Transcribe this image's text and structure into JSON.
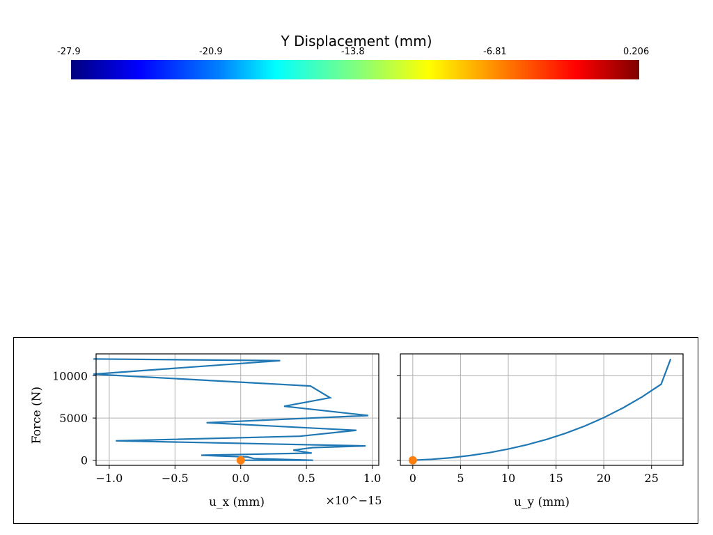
{
  "colorbar": {
    "title": "Y Displacement (mm)",
    "ticks": [
      "-27.9",
      "-20.9",
      "-13.8",
      "-6.81",
      "0.206"
    ],
    "colors": [
      "#00007f",
      "#0000ff",
      "#007fff",
      "#00ffff",
      "#7fff7f",
      "#ffff00",
      "#ff7f00",
      "#ff0000",
      "#7f0000"
    ]
  },
  "chart_data": [
    {
      "type": "line",
      "ylabel": "Force (N)",
      "xlabel": "u_x (mm)",
      "x_multiplier": "×10^−15",
      "x_tick_labels": [
        "−1.0",
        "−0.5",
        "0.0",
        "0.5",
        "1.0"
      ],
      "y_tick_labels": [
        "0",
        "5000",
        "10000"
      ],
      "xlim": [
        -1.1,
        1.05
      ],
      "ylim": [
        -600,
        12600
      ],
      "grid": true,
      "series": [
        {
          "color": "#1f77b4",
          "x": [
            0.0,
            0.55,
            0.1,
            0.05,
            -0.15,
            -0.3,
            0.54,
            0.4,
            0.55,
            0.95,
            -0.95,
            0.45,
            0.88,
            -0.26,
            0.97,
            0.33,
            0.68,
            0.53,
            -1.12,
            0.3,
            -1.12
          ],
          "y": [
            0,
            0,
            200,
            400,
            500,
            600,
            850,
            1200,
            1500,
            1700,
            2300,
            2850,
            3550,
            4450,
            5300,
            6400,
            7400,
            8800,
            10200,
            11800,
            12000
          ]
        }
      ],
      "marker": {
        "x": 0,
        "y": 0,
        "color": "#ff7f0e"
      }
    },
    {
      "type": "line",
      "xlabel": "u_y (mm)",
      "x_tick_labels": [
        "0",
        "5",
        "10",
        "15",
        "20",
        "25"
      ],
      "xlim": [
        -1.3,
        28.3
      ],
      "ylim": [
        -600,
        12600
      ],
      "grid": true,
      "series": [
        {
          "color": "#1f77b4",
          "x": [
            0,
            2,
            4,
            6,
            8,
            10,
            12,
            14,
            16,
            18,
            20,
            22,
            24,
            26,
            27
          ],
          "y": [
            0,
            120,
            300,
            560,
            900,
            1330,
            1850,
            2470,
            3200,
            4050,
            5050,
            6200,
            7500,
            9000,
            12000
          ]
        }
      ],
      "marker": {
        "x": 0,
        "y": 0,
        "color": "#ff7f0e"
      }
    }
  ]
}
